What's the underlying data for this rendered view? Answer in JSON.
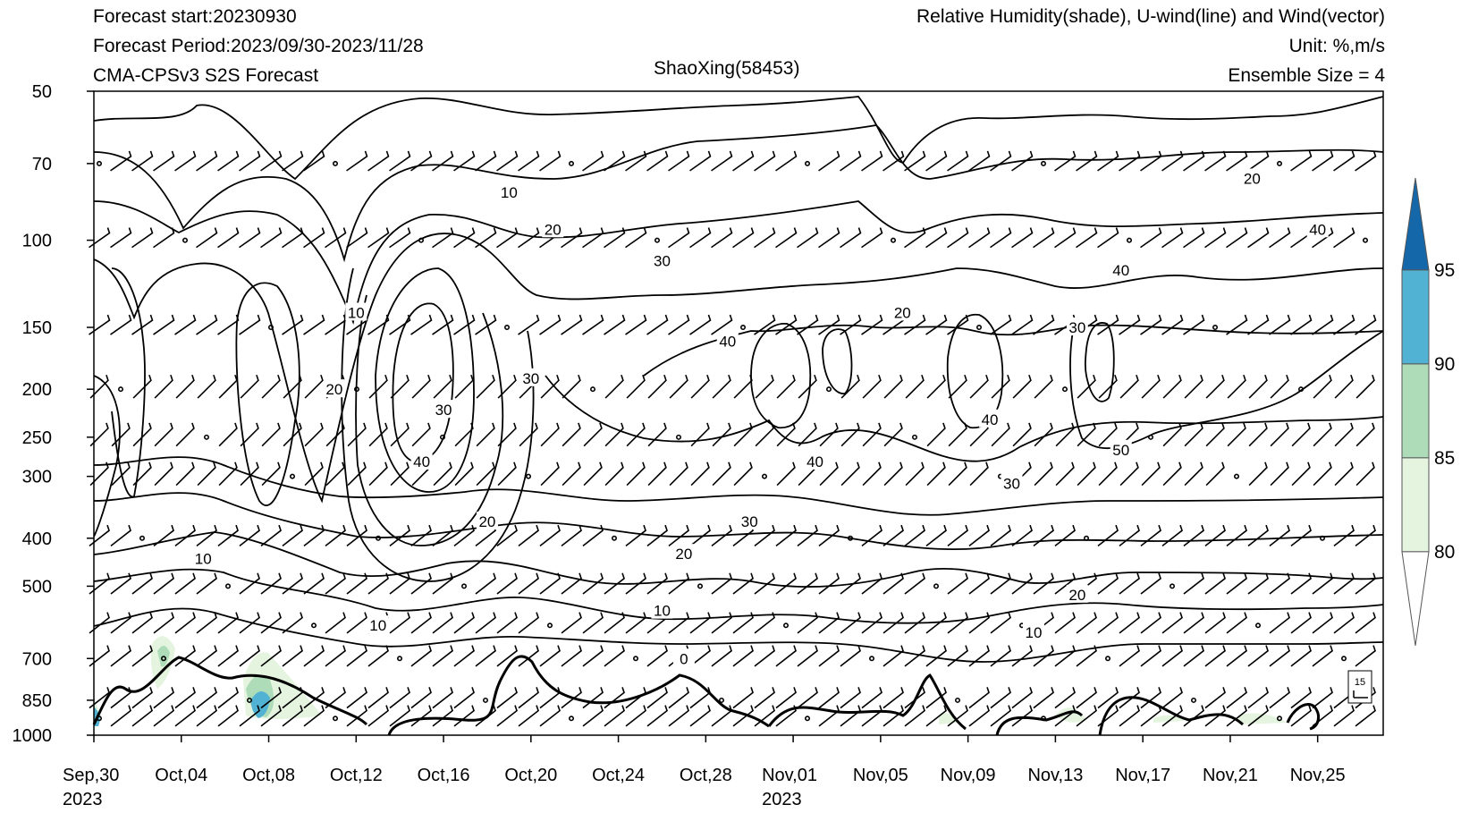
{
  "header": {
    "forecast_start": "Forecast start:20230930",
    "forecast_period": "Forecast Period:2023/09/30-2023/11/28",
    "model": "CMA-CPSv3 S2S Forecast",
    "station": "ShaoXing(58453)",
    "variables": "Relative Humidity(shade), U-wind(line) and Wind(vector)",
    "unit": "Unit: %,m/s",
    "ensemble": "Ensemble Size = 4"
  },
  "chart_data": {
    "type": "heatmap",
    "title": "ShaoXing(58453)",
    "x_start": "2023-09-30",
    "x_end": "2023-11-28",
    "x_ticks": [
      {
        "date": "2023-09-30",
        "label": "Sep,30",
        "label2": "2023"
      },
      {
        "date": "2023-10-04",
        "label": "Oct,04",
        "label2": ""
      },
      {
        "date": "2023-10-08",
        "label": "Oct,08",
        "label2": ""
      },
      {
        "date": "2023-10-12",
        "label": "Oct,12",
        "label2": ""
      },
      {
        "date": "2023-10-16",
        "label": "Oct,16",
        "label2": ""
      },
      {
        "date": "2023-10-20",
        "label": "Oct,20",
        "label2": ""
      },
      {
        "date": "2023-10-24",
        "label": "Oct,24",
        "label2": ""
      },
      {
        "date": "2023-10-28",
        "label": "Oct,28",
        "label2": ""
      },
      {
        "date": "2023-11-01",
        "label": "Nov,01",
        "label2": "2023"
      },
      {
        "date": "2023-11-05",
        "label": "Nov,05",
        "label2": ""
      },
      {
        "date": "2023-11-09",
        "label": "Nov,09",
        "label2": ""
      },
      {
        "date": "2023-11-13",
        "label": "Nov,13",
        "label2": ""
      },
      {
        "date": "2023-11-17",
        "label": "Nov,17",
        "label2": ""
      },
      {
        "date": "2023-11-21",
        "label": "Nov,21",
        "label2": ""
      },
      {
        "date": "2023-11-25",
        "label": "Nov,25",
        "label2": ""
      }
    ],
    "y_levels_hpa": [
      50,
      70,
      100,
      150,
      200,
      250,
      300,
      400,
      500,
      700,
      850,
      1000
    ],
    "y_scale": "log-pressure",
    "ylim": [
      1000,
      50
    ],
    "colorbar": {
      "levels": [
        80,
        85,
        90,
        95
      ],
      "colors": [
        "#ffffff",
        "#e4f4df",
        "#aedcb8",
        "#52b2d3",
        "#1467a9"
      ]
    },
    "wind_reference_speed": "15",
    "u_wind_contour_labels": [
      {
        "date": "2023-10-12",
        "hpa": 140,
        "text": "10"
      },
      {
        "date": "2023-10-19",
        "hpa": 80,
        "text": "10"
      },
      {
        "date": "2023-10-21",
        "hpa": 95,
        "text": "20"
      },
      {
        "date": "2023-10-26",
        "hpa": 110,
        "text": "30"
      },
      {
        "date": "2023-10-29",
        "hpa": 160,
        "text": "40"
      },
      {
        "date": "2023-10-11",
        "hpa": 200,
        "text": "20"
      },
      {
        "date": "2023-10-20",
        "hpa": 190,
        "text": "30"
      },
      {
        "date": "2023-10-16",
        "hpa": 220,
        "text": "30"
      },
      {
        "date": "2023-10-15",
        "hpa": 280,
        "text": "40"
      },
      {
        "date": "2023-10-18",
        "hpa": 370,
        "text": "20"
      },
      {
        "date": "2023-10-30",
        "hpa": 370,
        "text": "30"
      },
      {
        "date": "2023-10-27",
        "hpa": 430,
        "text": "20"
      },
      {
        "date": "2023-10-05",
        "hpa": 440,
        "text": "10"
      },
      {
        "date": "2023-10-13",
        "hpa": 600,
        "text": "10"
      },
      {
        "date": "2023-10-26",
        "hpa": 560,
        "text": "10"
      },
      {
        "date": "2023-11-02",
        "hpa": 280,
        "text": "40"
      },
      {
        "date": "2023-11-10",
        "hpa": 230,
        "text": "40"
      },
      {
        "date": "2023-11-06",
        "hpa": 140,
        "text": "20"
      },
      {
        "date": "2023-11-14",
        "hpa": 150,
        "text": "30"
      },
      {
        "date": "2023-11-16",
        "hpa": 115,
        "text": "40"
      },
      {
        "date": "2023-11-25",
        "hpa": 95,
        "text": "40"
      },
      {
        "date": "2023-11-22",
        "hpa": 75,
        "text": "20"
      },
      {
        "date": "2023-11-16",
        "hpa": 265,
        "text": "50"
      },
      {
        "date": "2023-11-11",
        "hpa": 310,
        "text": "30"
      },
      {
        "date": "2023-11-14",
        "hpa": 520,
        "text": "20"
      },
      {
        "date": "2023-11-12",
        "hpa": 620,
        "text": "10"
      },
      {
        "date": "2023-10-27",
        "hpa": 700,
        "text": "0"
      }
    ]
  }
}
